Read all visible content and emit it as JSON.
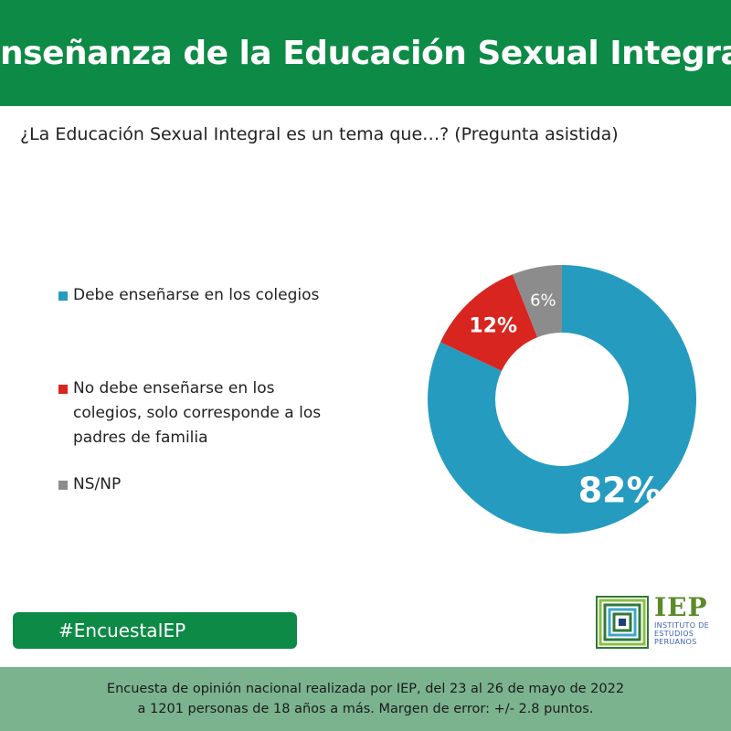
{
  "header": {
    "title": "Enseñanza de la Educación Sexual Integral"
  },
  "question": "¿La Educación Sexual Integral es un tema que…? (Pregunta asistida)",
  "legend": [
    {
      "lines": [
        "Debe enseñarse en los colegios"
      ],
      "color": "#259bbf"
    },
    {
      "lines": [
        "No debe enseñarse en los",
        "colegios, solo corresponde a los",
        "padres de familia"
      ],
      "color": "#d9251f"
    },
    {
      "lines": [
        "NS/NP"
      ],
      "color": "#8c8c8c"
    }
  ],
  "chart_data": {
    "type": "pie",
    "donut": true,
    "categories": [
      "Debe enseñarse en los colegios",
      "No debe enseñarse en los colegios, solo corresponde a los padres de familia",
      "NS/NP"
    ],
    "values": [
      82,
      12,
      6
    ],
    "labels": [
      "82%",
      "12%",
      "6%"
    ],
    "colors": [
      "#259bbf",
      "#d9251f",
      "#8c8c8c"
    ],
    "legend": "left"
  },
  "hashtag": "#EncuestaIEP",
  "logo": {
    "name": "IEP",
    "lines": [
      "INSTITUTO DE",
      "ESTUDIOS",
      "PERUANOS"
    ]
  },
  "footer": {
    "line1": "Encuesta de opinión nacional realizada por IEP, del 23 al 26 de mayo de 2022",
    "line2": "a 1201 personas de 18 años a más. Margen de error: +/- 2.8 puntos."
  }
}
